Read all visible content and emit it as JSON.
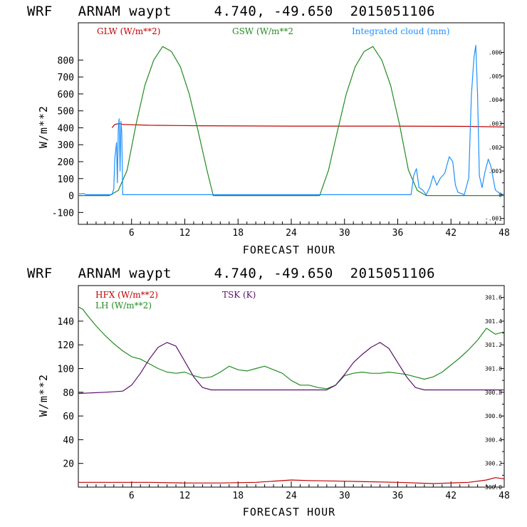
{
  "chart_data": [
    {
      "type": "line",
      "title": "WRF   ARNAM waypt     4.740, -49.650  2015051106",
      "xlabel": "FORECAST HOUR",
      "ylabel": "W/m**2",
      "xlim": [
        0,
        48
      ],
      "ylim": [
        -170,
        1020
      ],
      "xticks": [
        6,
        12,
        18,
        24,
        30,
        36,
        42,
        48
      ],
      "yticks": [
        -100,
        0,
        100,
        200,
        300,
        400,
        500,
        600,
        700,
        800
      ],
      "y2lim": [
        -0.00125,
        0.00725
      ],
      "y2ticks": [
        -0.001,
        0,
        0.001,
        0.002,
        0.003,
        0.004,
        0.005,
        0.006
      ],
      "y2tick_labels": [
        "-.001",
        "0",
        ".001",
        ".002",
        ".003",
        ".004",
        ".005",
        ".006"
      ],
      "series": [
        {
          "name": "GLW (W/m**2)",
          "color": "#c00000",
          "axis": "left",
          "points": [
            [
              3.8,
              400
            ],
            [
              4.1,
              420
            ],
            [
              4.6,
              425
            ],
            [
              5,
              420
            ],
            [
              8,
              415
            ],
            [
              14,
              412
            ],
            [
              24,
              410
            ],
            [
              36,
              410
            ],
            [
              44,
              408
            ],
            [
              48,
              405
            ]
          ]
        },
        {
          "name": "GSW (W/m**2",
          "color": "#228b22",
          "axis": "left",
          "points": [
            [
              0,
              0
            ],
            [
              3.5,
              0
            ],
            [
              4.5,
              30
            ],
            [
              5.5,
              150
            ],
            [
              6.5,
              420
            ],
            [
              7.5,
              650
            ],
            [
              8.5,
              800
            ],
            [
              9.5,
              880
            ],
            [
              10.5,
              850
            ],
            [
              11.5,
              760
            ],
            [
              12.5,
              600
            ],
            [
              13.5,
              380
            ],
            [
              14.5,
              150
            ],
            [
              15.2,
              0
            ],
            [
              27.2,
              0
            ],
            [
              28.2,
              150
            ],
            [
              29.2,
              380
            ],
            [
              30.2,
              600
            ],
            [
              31.2,
              760
            ],
            [
              32.2,
              850
            ],
            [
              33.2,
              880
            ],
            [
              34.2,
              800
            ],
            [
              35.2,
              650
            ],
            [
              36.2,
              420
            ],
            [
              37.2,
              150
            ],
            [
              38.2,
              30
            ],
            [
              39.2,
              0
            ],
            [
              48,
              0
            ]
          ]
        },
        {
          "name": "Integrated cloud (mm)",
          "color": "#1e90ff",
          "axis": "right",
          "points": [
            [
              0,
              5e-05
            ],
            [
              0.3,
              3e-05
            ],
            [
              0.6,
              5e-05
            ],
            [
              0.9,
              0
            ],
            [
              1,
              0
            ],
            [
              3.8,
              0
            ],
            [
              4,
              0.00025
            ],
            [
              4.1,
              0.0015
            ],
            [
              4.3,
              0.0022
            ],
            [
              4.4,
              0.0005
            ],
            [
              4.5,
              0.0028
            ],
            [
              4.6,
              0.0032
            ],
            [
              4.7,
              0.001
            ],
            [
              4.8,
              0.0031
            ],
            [
              4.9,
              0.0026
            ],
            [
              5,
              0
            ],
            [
              5.1,
              0
            ],
            [
              37.5,
              0
            ],
            [
              37.8,
              0.0008
            ],
            [
              38.1,
              0.0011
            ],
            [
              38.4,
              0.0003
            ],
            [
              38.8,
              0.0002
            ],
            [
              39.2,
              0
            ],
            [
              39.6,
              0.0003
            ],
            [
              40,
              0.0008
            ],
            [
              40.4,
              0.0004
            ],
            [
              40.8,
              0.0007
            ],
            [
              41.3,
              0.0009
            ],
            [
              41.8,
              0.0016
            ],
            [
              42.2,
              0.0014
            ],
            [
              42.5,
              0.0004
            ],
            [
              42.8,
              0.0001
            ],
            [
              43.5,
              0
            ],
            [
              44,
              0.0007
            ],
            [
              44.3,
              0.0042
            ],
            [
              44.6,
              0.0058
            ],
            [
              44.8,
              0.0063
            ],
            [
              45,
              0.0042
            ],
            [
              45.2,
              0.0008
            ],
            [
              45.5,
              0.0003
            ],
            [
              45.8,
              0.0009
            ],
            [
              46.2,
              0.0015
            ],
            [
              46.5,
              0.0012
            ],
            [
              47,
              0.0002
            ],
            [
              47.5,
              5e-05
            ],
            [
              48,
              0
            ]
          ]
        }
      ]
    },
    {
      "type": "line",
      "title": "WRF   ARNAM waypt     4.740, -49.650  2015051106",
      "xlabel": "FORECAST HOUR",
      "ylabel": "W/m**2",
      "xlim": [
        0,
        48
      ],
      "ylim": [
        0,
        170
      ],
      "xticks": [
        6,
        12,
        18,
        24,
        30,
        36,
        42,
        48
      ],
      "yticks": [
        20,
        40,
        60,
        80,
        100,
        120,
        140
      ],
      "y2lim": [
        300.0,
        301.7
      ],
      "y2ticks": [
        300.0,
        300.2,
        300.4,
        300.6,
        300.8,
        301.0,
        301.2,
        301.4,
        301.6
      ],
      "y2tick_labels": [
        "300.0",
        "300.2",
        "300.4",
        "300.6",
        "300.8",
        "301.0",
        "301.2",
        "301.4",
        "301.6"
      ],
      "series": [
        {
          "name": "HFX (W/m**2)",
          "color": "#c00000",
          "axis": "left",
          "points": [
            [
              0,
              4
            ],
            [
              4,
              4
            ],
            [
              8,
              4
            ],
            [
              12,
              3.5
            ],
            [
              16,
              3.5
            ],
            [
              20,
              4
            ],
            [
              24,
              6
            ],
            [
              26,
              5.5
            ],
            [
              30,
              5
            ],
            [
              36,
              4
            ],
            [
              40,
              3
            ],
            [
              44,
              4
            ],
            [
              46,
              6
            ],
            [
              47,
              8
            ],
            [
              48,
              7
            ]
          ]
        },
        {
          "name": "LH  (W/m**2)",
          "color": "#228b22",
          "axis": "left",
          "points": [
            [
              0,
              152
            ],
            [
              0.5,
              150
            ],
            [
              1,
              145
            ],
            [
              2,
              136
            ],
            [
              3,
              128
            ],
            [
              4,
              121
            ],
            [
              5,
              115
            ],
            [
              6,
              110
            ],
            [
              7,
              108
            ],
            [
              8,
              104
            ],
            [
              9,
              100
            ],
            [
              10,
              97
            ],
            [
              11,
              96
            ],
            [
              12,
              97
            ],
            [
              13,
              94
            ],
            [
              14,
              92
            ],
            [
              15,
              93
            ],
            [
              16,
              97
            ],
            [
              17,
              102
            ],
            [
              18,
              99
            ],
            [
              19,
              98
            ],
            [
              20,
              100
            ],
            [
              21,
              102
            ],
            [
              22,
              99
            ],
            [
              23,
              96
            ],
            [
              24,
              90
            ],
            [
              25,
              86
            ],
            [
              26,
              86
            ],
            [
              27,
              84
            ],
            [
              28,
              83
            ],
            [
              29,
              86
            ],
            [
              30,
              94
            ],
            [
              31,
              96
            ],
            [
              32,
              97
            ],
            [
              33,
              96
            ],
            [
              34,
              96
            ],
            [
              35,
              97
            ],
            [
              36,
              96
            ],
            [
              37,
              95
            ],
            [
              38,
              93
            ],
            [
              39,
              91
            ],
            [
              40,
              93
            ],
            [
              41,
              97
            ],
            [
              42,
              103
            ],
            [
              43,
              109
            ],
            [
              44,
              116
            ],
            [
              45,
              124
            ],
            [
              46,
              134
            ],
            [
              47,
              129
            ],
            [
              48,
              131
            ]
          ]
        },
        {
          "name": "TSK (K)",
          "color": "#5b0f6b",
          "axis": "right",
          "points": [
            [
              0,
              300.79
            ],
            [
              3,
              300.8
            ],
            [
              5,
              300.81
            ],
            [
              6,
              300.86
            ],
            [
              7,
              300.96
            ],
            [
              8,
              301.08
            ],
            [
              9,
              301.18
            ],
            [
              10,
              301.22
            ],
            [
              11,
              301.19
            ],
            [
              12,
              301.06
            ],
            [
              13,
              300.93
            ],
            [
              14,
              300.84
            ],
            [
              15,
              300.82
            ],
            [
              24,
              300.82
            ],
            [
              28,
              300.82
            ],
            [
              29,
              300.86
            ],
            [
              30,
              300.95
            ],
            [
              31,
              301.05
            ],
            [
              32,
              301.12
            ],
            [
              33,
              301.18
            ],
            [
              34,
              301.22
            ],
            [
              35,
              301.17
            ],
            [
              36,
              301.05
            ],
            [
              37,
              300.93
            ],
            [
              38,
              300.84
            ],
            [
              39,
              300.82
            ],
            [
              48,
              300.82
            ]
          ]
        }
      ]
    }
  ]
}
